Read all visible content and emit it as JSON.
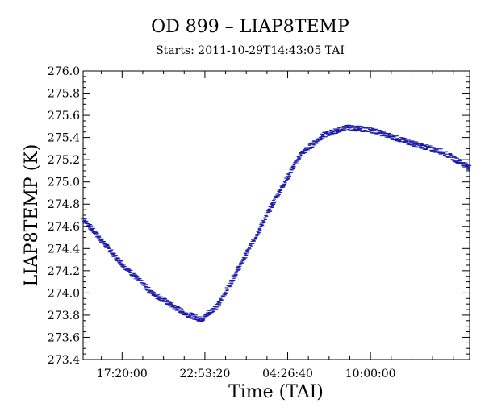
{
  "chart_data": {
    "type": "scatter",
    "title": "OD 899 – LIAP8TEMP",
    "subtitle": "Starts: 2011-10-29T14:43:05 TAI",
    "xlabel": "Time (TAI)",
    "ylabel": "LIAP8TEMP (K)",
    "ylim": [
      273.4,
      276.0
    ],
    "xlim": [
      "2011-10-29T14:43:05",
      "2011-10-30T16:39:05"
    ],
    "x_tick_labels": [
      "17:20:00",
      "22:53:20",
      "04:26:40",
      "10:00:00"
    ],
    "x_ticks": [
      "2011-10-29T17:20:00",
      "2011-10-29T22:53:20",
      "2011-10-30T04:26:40",
      "2011-10-30T10:00:00"
    ],
    "y_ticks": [
      273.4,
      273.6,
      273.8,
      274.0,
      274.2,
      274.4,
      274.6,
      274.8,
      275.0,
      275.2,
      275.4,
      275.6,
      275.8,
      276.0
    ],
    "y_tick_labels": [
      "273.4",
      "273.6",
      "273.8",
      "274.0",
      "274.2",
      "274.4",
      "274.6",
      "274.8",
      "275.0",
      "275.2",
      "275.4",
      "275.6",
      "275.8",
      "276.0"
    ],
    "grid": false,
    "marker_color": "#1a1aa8",
    "series": [
      {
        "x": [
          "2011-10-29T14:43:05",
          "2011-10-29T17:03:00",
          "2011-10-29T19:20:00",
          "2011-10-29T21:30:00",
          "2011-10-29T22:40:00",
          "2011-10-29T23:50:00",
          "2011-10-30T01:40:00",
          "2011-10-30T03:50:00",
          "2011-10-30T05:20:00",
          "2011-10-30T06:50:00",
          "2011-10-30T08:20:00",
          "2011-10-30T10:00:00",
          "2011-10-30T12:30:00",
          "2011-10-30T14:50:00",
          "2011-10-30T16:39:05"
        ],
        "y": [
          274.67,
          274.3,
          274.0,
          273.82,
          273.76,
          273.9,
          274.35,
          274.9,
          275.25,
          275.42,
          275.49,
          275.47,
          275.36,
          275.27,
          275.13
        ]
      }
    ]
  }
}
